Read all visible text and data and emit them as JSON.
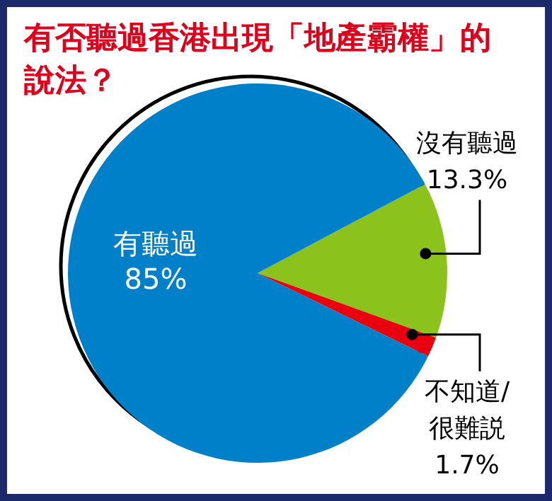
{
  "chart_data": {
    "type": "pie",
    "title": "有否聽過香港出現「地產霸權」的說法？",
    "categories": [
      "沒有聽過",
      "不知道/很難説",
      "有聽過"
    ],
    "values": [
      13.3,
      1.7,
      85
    ],
    "colors": [
      "#8cc21c",
      "#e8000f",
      "#0080c8"
    ],
    "value_labels": [
      "13.3%",
      "1.7%",
      "85%"
    ],
    "legend": false
  }
}
